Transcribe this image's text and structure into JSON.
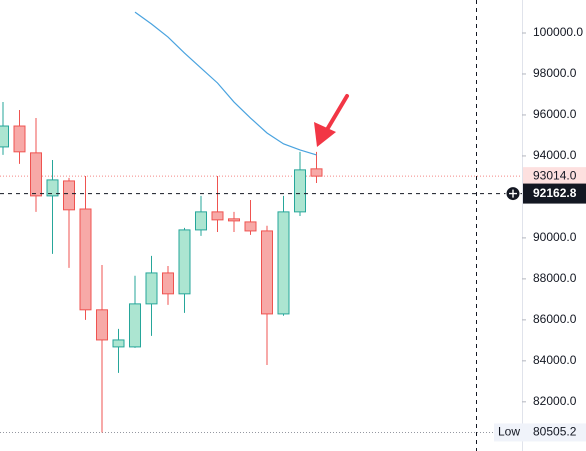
{
  "chart_data": {
    "type": "candlestick",
    "open": [
      94440,
      95460,
      94150,
      92050,
      92780,
      91410,
      86490,
      84680,
      84680,
      86780,
      88290,
      87270,
      90390,
      91270,
      90930,
      90780,
      90340,
      86290,
      91270,
      93370
    ],
    "high": [
      96630,
      96240,
      95850,
      93800,
      92930,
      93020,
      88680,
      85560,
      88150,
      89120,
      88630,
      90490,
      92050,
      93020,
      91270,
      91850,
      90590,
      92050,
      94200,
      94200
    ],
    "low": [
      94050,
      93610,
      91270,
      89220,
      88540,
      86000,
      80505.2,
      83410,
      84630,
      85220,
      86730,
      86340,
      90100,
      90290,
      90290,
      90150,
      83800,
      86200,
      91070,
      92680
    ],
    "close": [
      95460,
      94200,
      92050,
      92830,
      91370,
      86490,
      85020,
      85020,
      86780,
      88290,
      87270,
      90390,
      91270,
      90880,
      90830,
      90340,
      86290,
      91270,
      93320,
      93014
    ],
    "up_color": "#26a69a",
    "up_fill": "#ace5d1",
    "down_color": "#ef5350",
    "down_fill": "#f7a9a7",
    "moving_average": {
      "color": "#4aa3df",
      "values": [
        null,
        null,
        null,
        null,
        null,
        null,
        null,
        null,
        101020,
        100440,
        99800,
        99020,
        98290,
        97560,
        96630,
        95850,
        95120,
        94590,
        94290,
        94050
      ]
    },
    "ylim": [
      79600,
      101610
    ],
    "yticks": [
      {
        "value": 82000,
        "label": "82000.0"
      },
      {
        "value": 84000,
        "label": "84000.0"
      },
      {
        "value": 86000,
        "label": "86000.0"
      },
      {
        "value": 88000,
        "label": "88000.0"
      },
      {
        "value": 90000,
        "label": "90000.0"
      },
      {
        "value": 94000,
        "label": "94000.0"
      },
      {
        "value": 96000,
        "label": "96000.0"
      },
      {
        "value": 98000,
        "label": "98000.0"
      },
      {
        "value": 100000,
        "label": "100000.0"
      }
    ],
    "last_price": {
      "value": 93014.0,
      "label": "93014.0"
    },
    "crosshair_price": {
      "value": 92162.8,
      "label": "92162.8"
    },
    "low_marker": {
      "name": "Low",
      "value": 80505.2,
      "label": "80505.2"
    }
  }
}
